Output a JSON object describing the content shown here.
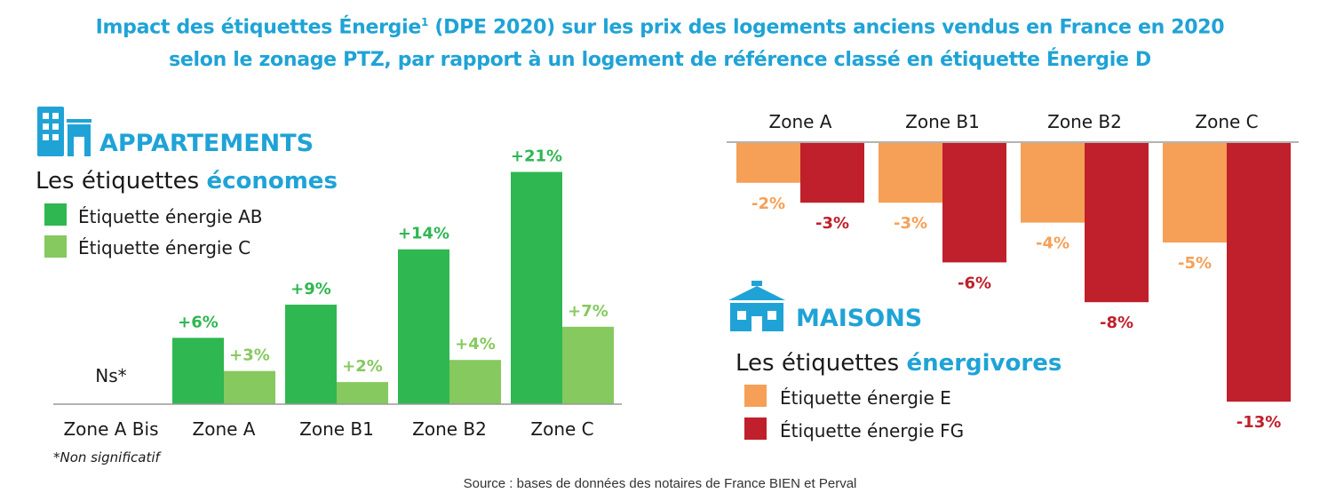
{
  "title": {
    "line1_before": "Impact des étiquettes Énergie",
    "line1_sup": "1",
    "line1_after": " (DPE 2020) sur les prix des logements anciens vendus en France en 2020",
    "line2": "selon le zonage PTZ, par rapport à un logement de référence classé en étiquette Énergie D"
  },
  "source": "Source : bases de données des notaires de France BIEN et Perval",
  "colors": {
    "blue": "#1fa3d6",
    "green_dark": "#2fb751",
    "green_light": "#86c95f",
    "orange": "#f5a056",
    "red": "#c0202b",
    "text": "#1a1a1a"
  },
  "chart_data": [
    {
      "type": "bar",
      "heading": "APPARTEMENTS",
      "subheading_prefix": "Les étiquettes ",
      "subheading_highlight": "économes",
      "categories": [
        "Zone A Bis",
        "Zone A",
        "Zone B1",
        "Zone B2",
        "Zone C"
      ],
      "series": [
        {
          "name": "Étiquette énergie AB",
          "values": [
            null,
            6,
            9,
            14,
            21
          ],
          "labels": [
            "",
            "+6%",
            "+9%",
            "+14%",
            "+21%"
          ]
        },
        {
          "name": "Étiquette énergie C",
          "values": [
            null,
            3,
            2,
            4,
            7
          ],
          "labels": [
            "",
            "+3%",
            "+2%",
            "+4%",
            "+7%"
          ]
        }
      ],
      "na_label": "Ns*",
      "footnote": "*Non significatif",
      "ylim": [
        0,
        21
      ]
    },
    {
      "type": "bar",
      "heading": "MAISONS",
      "subheading_prefix": "Les étiquettes ",
      "subheading_highlight": "énergivores",
      "categories": [
        "Zone A",
        "Zone B1",
        "Zone B2",
        "Zone C"
      ],
      "series": [
        {
          "name": "Étiquette énergie E",
          "values": [
            -2,
            -3,
            -4,
            -5
          ],
          "labels": [
            "-2%",
            "-3%",
            "-4%",
            "-5%"
          ]
        },
        {
          "name": "Étiquette énergie FG",
          "values": [
            -3,
            -6,
            -8,
            -13
          ],
          "labels": [
            "-3%",
            "-6%",
            "-8%",
            "-13%"
          ]
        }
      ],
      "ylim": [
        -13,
        0
      ]
    }
  ]
}
